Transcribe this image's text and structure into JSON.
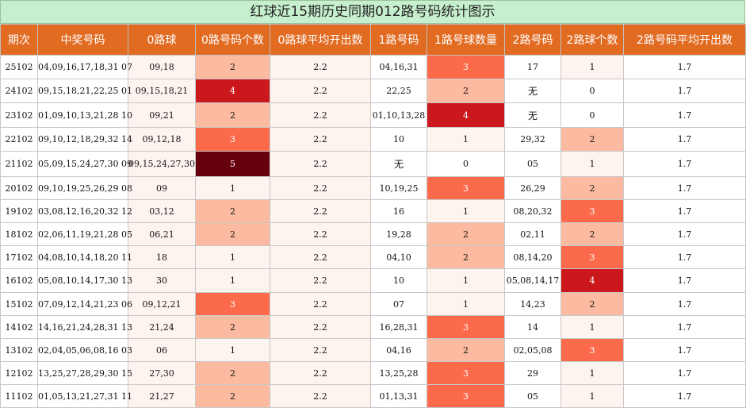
{
  "title": "红球近15期历史同期012路号码统计图示",
  "headers": [
    "期次",
    "中奖号码",
    "0路球",
    "0路号码个数",
    "0路球平均开出数",
    "1路号码",
    "1路号球数量",
    "2路号码",
    "2路球个数",
    "2路号码平均开出数"
  ],
  "colors": {
    "c0": "#ffffff",
    "c1": "#fdf3ef",
    "c2": "#fcbba1",
    "c3": "#fb6a4a",
    "c4": "#cb181d",
    "c5": "#67000d"
  },
  "rows": [
    {
      "period": "25102",
      "numbers": "04,09,16,17,18,31 07",
      "r0": "09,18",
      "r0_count": "2",
      "r0_avg": "2.2",
      "r1": "04,16,31",
      "r1_count": "3",
      "r2": "17",
      "r2_count": "1",
      "r2_avg": "1.7"
    },
    {
      "period": "24102",
      "numbers": "09,15,18,21,22,25 01",
      "r0": "09,15,18,21",
      "r0_count": "4",
      "r0_avg": "2.2",
      "r1": "22,25",
      "r1_count": "2",
      "r2": "无",
      "r2_count": "0",
      "r2_avg": "1.7"
    },
    {
      "period": "23102",
      "numbers": "01,09,10,13,21,28 10",
      "r0": "09,21",
      "r0_count": "2",
      "r0_avg": "2.2",
      "r1": "01,10,13,28",
      "r1_count": "4",
      "r2": "无",
      "r2_count": "0",
      "r2_avg": "1.7"
    },
    {
      "period": "22102",
      "numbers": "09,10,12,18,29,32 14",
      "r0": "09,12,18",
      "r0_count": "3",
      "r0_avg": "2.2",
      "r1": "10",
      "r1_count": "1",
      "r2": "29,32",
      "r2_count": "2",
      "r2_avg": "1.7"
    },
    {
      "period": "21102",
      "numbers": "05,09,15,24,27,30 09",
      "r0": "09,15,24,27,30",
      "r0_count": "5",
      "r0_avg": "2.2",
      "r1": "无",
      "r1_count": "0",
      "r2": "05",
      "r2_count": "1",
      "r2_avg": "1.7"
    },
    {
      "period": "20102",
      "numbers": "09,10,19,25,26,29 08",
      "r0": "09",
      "r0_count": "1",
      "r0_avg": "2.2",
      "r1": "10,19,25",
      "r1_count": "3",
      "r2": "26,29",
      "r2_count": "2",
      "r2_avg": "1.7"
    },
    {
      "period": "19102",
      "numbers": "03,08,12,16,20,32 12",
      "r0": "03,12",
      "r0_count": "2",
      "r0_avg": "2.2",
      "r1": "16",
      "r1_count": "1",
      "r2": "08,20,32",
      "r2_count": "3",
      "r2_avg": "1.7"
    },
    {
      "period": "18102",
      "numbers": "02,06,11,19,21,28 05",
      "r0": "06,21",
      "r0_count": "2",
      "r0_avg": "2.2",
      "r1": "19,28",
      "r1_count": "2",
      "r2": "02,11",
      "r2_count": "2",
      "r2_avg": "1.7"
    },
    {
      "period": "17102",
      "numbers": "04,08,10,14,18,20 11",
      "r0": "18",
      "r0_count": "1",
      "r0_avg": "2.2",
      "r1": "04,10",
      "r1_count": "2",
      "r2": "08,14,20",
      "r2_count": "3",
      "r2_avg": "1.7"
    },
    {
      "period": "16102",
      "numbers": "05,08,10,14,17,30 13",
      "r0": "30",
      "r0_count": "1",
      "r0_avg": "2.2",
      "r1": "10",
      "r1_count": "1",
      "r2": "05,08,14,17",
      "r2_count": "4",
      "r2_avg": "1.7"
    },
    {
      "period": "15102",
      "numbers": "07,09,12,14,21,23 06",
      "r0": "09,12,21",
      "r0_count": "3",
      "r0_avg": "2.2",
      "r1": "07",
      "r1_count": "1",
      "r2": "14,23",
      "r2_count": "2",
      "r2_avg": "1.7"
    },
    {
      "period": "14102",
      "numbers": "14,16,21,24,28,31 13",
      "r0": "21,24",
      "r0_count": "2",
      "r0_avg": "2.2",
      "r1": "16,28,31",
      "r1_count": "3",
      "r2": "14",
      "r2_count": "1",
      "r2_avg": "1.7"
    },
    {
      "period": "13102",
      "numbers": "02,04,05,06,08,16 03",
      "r0": "06",
      "r0_count": "1",
      "r0_avg": "2.2",
      "r1": "04,16",
      "r1_count": "2",
      "r2": "02,05,08",
      "r2_count": "3",
      "r2_avg": "1.7"
    },
    {
      "period": "12102",
      "numbers": "13,25,27,28,29,30 15",
      "r0": "27,30",
      "r0_count": "2",
      "r0_avg": "2.2",
      "r1": "13,25,28",
      "r1_count": "3",
      "r2": "29",
      "r2_count": "1",
      "r2_avg": "1.7"
    },
    {
      "period": "11102",
      "numbers": "01,05,13,21,27,31 11",
      "r0": "21,27",
      "r0_count": "2",
      "r0_avg": "2.2",
      "r1": "01,13,31",
      "r1_count": "3",
      "r2": "05",
      "r2_count": "1",
      "r2_avg": "1.7"
    }
  ]
}
